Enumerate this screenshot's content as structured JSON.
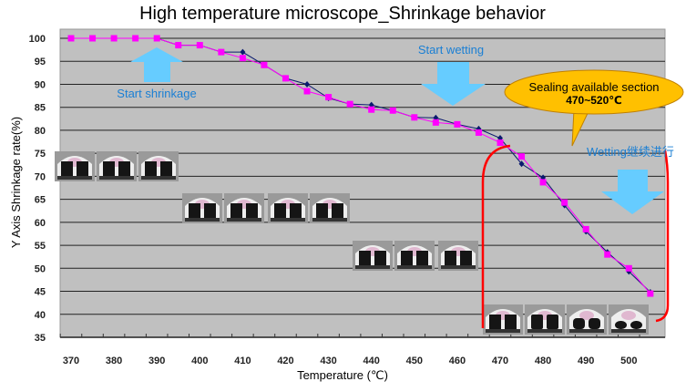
{
  "chart_data": {
    "type": "line",
    "title": "High temperature microscope_Shrinkage behavior",
    "xlabel": "Temperature (℃)",
    "ylabel": "Y Axis Shrinkage rate(%)",
    "ylim": [
      35,
      100
    ],
    "yticks": [
      "100",
      "95",
      "90",
      "85",
      "80",
      "75",
      "70",
      "65",
      "60",
      "55",
      "50",
      "45",
      "40",
      "35"
    ],
    "xticks": [
      "370",
      "380",
      "390",
      "400",
      "410",
      "420",
      "430",
      "440",
      "450",
      "460",
      "470",
      "480",
      "490",
      "500"
    ],
    "grid": true,
    "x": [
      370,
      375,
      380,
      385,
      390,
      395,
      400,
      405,
      410,
      415,
      420,
      425,
      430,
      435,
      440,
      445,
      450,
      455,
      460,
      465,
      470,
      475,
      480,
      485,
      490,
      495,
      500,
      505
    ],
    "series": [
      {
        "marker": "diamond",
        "color": "#0a1a6e",
        "values": [
          100,
          100,
          100,
          100,
          100,
          98.5,
          98.5,
          97,
          97,
          94.2,
          91.3,
          90,
          87,
          85.7,
          85.5,
          84.3,
          82.8,
          82.7,
          81.3,
          80.3,
          78.3,
          72.7,
          69.7,
          63.7,
          58,
          53.5,
          49.3,
          44.8
        ]
      },
      {
        "marker": "square",
        "color": "#ff00ff",
        "values": [
          100,
          100,
          100,
          100,
          100,
          98.5,
          98.5,
          97,
          95.7,
          94.2,
          91.3,
          88.5,
          87.2,
          85.7,
          84.5,
          84.3,
          82.8,
          81.7,
          81.3,
          79.5,
          77.3,
          74.3,
          68.7,
          64.3,
          58.5,
          53,
          50,
          44.5
        ]
      }
    ],
    "annotations": {
      "start_shrinkage": "Start shrinkage",
      "start_wetting": "Start wetting",
      "sealing_line1": "Sealing available section",
      "sealing_line2": "470~520℃",
      "wetting_continue": "Wetting继续进行"
    },
    "colors": {
      "plot_bg": "#c0c0c0",
      "arrow": "#66ccff",
      "callout": "#ffc000",
      "highlight": "#ff0000"
    }
  }
}
